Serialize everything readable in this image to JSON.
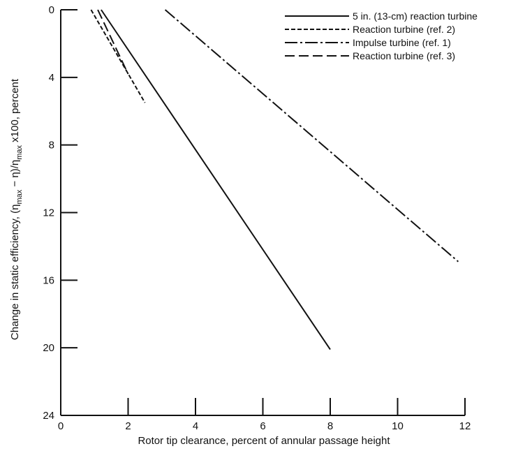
{
  "chart_data": {
    "type": "line",
    "xlabel": "Rotor tip clearance, percent of annular passage height",
    "ylabel": "Change in static efficiency, (η_max − η)/η_max x100, percent",
    "xlim": [
      0,
      12
    ],
    "ylim": [
      24,
      0
    ],
    "y_inverted": true,
    "x_ticks": [
      0,
      2,
      4,
      6,
      8,
      10,
      12
    ],
    "y_ticks": [
      0,
      4,
      8,
      12,
      16,
      20,
      24
    ],
    "legend_position": "top-right",
    "grid": false,
    "series": [
      {
        "name": "5 in. (13-cm) reaction turbine",
        "style": "solid",
        "x": [
          1.2,
          8.0
        ],
        "y": [
          0,
          20.1
        ]
      },
      {
        "name": "Reaction turbine (ref. 2)",
        "style": "dashed",
        "x": [
          0.9,
          2.5
        ],
        "y": [
          0,
          5.5
        ]
      },
      {
        "name": "Impulse turbine (ref. 1)",
        "style": "dashdot",
        "x": [
          3.1,
          11.8
        ],
        "y": [
          0,
          14.9
        ]
      },
      {
        "name": "Reaction turbine (ref. 3)",
        "style": "longdash",
        "x": [
          1.1,
          2.0
        ],
        "y": [
          0,
          3.8
        ]
      }
    ]
  }
}
